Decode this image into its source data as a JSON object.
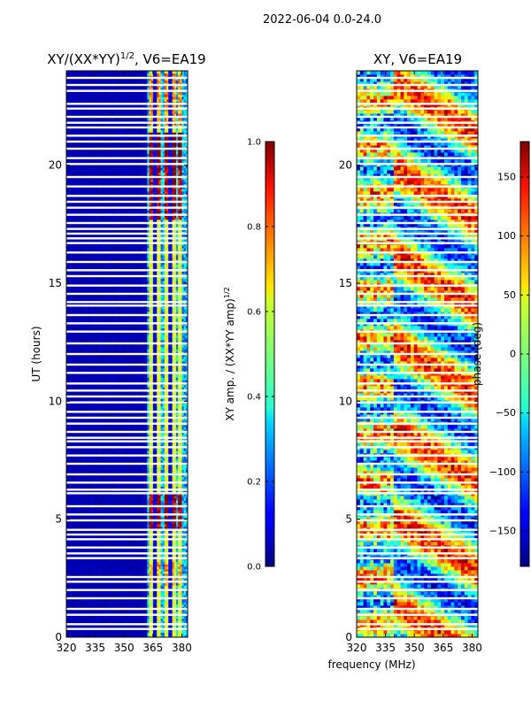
{
  "figure": {
    "suptitle": "2022-06-04 0.0-24.0",
    "shared_xlabel": "frequency (MHz)"
  },
  "chart_data": [
    {
      "type": "heatmap",
      "title": "XY/(XX*YY)",
      "title_exponent": "1/2",
      "title_suffix": ", V6=EA19",
      "xlabel": "",
      "ylabel": "UT (hours)",
      "xlim": [
        320,
        383
      ],
      "ylim": [
        0,
        24
      ],
      "xticks": [
        320,
        335,
        350,
        365,
        380
      ],
      "yticks": [
        0,
        5,
        10,
        15,
        20
      ],
      "colormap": "jet",
      "colorbar": {
        "label": "XY amp. / (XX*YY amp)",
        "label_exponent": "1/2",
        "range": [
          0.0,
          1.0
        ],
        "ticks": [
          "0.0",
          "0.2",
          "0.4",
          "0.6",
          "0.8",
          "1.0"
        ]
      },
      "flagged_ut_hours": [
        0.35,
        0.55,
        0.95,
        1.2,
        1.65,
        2.0,
        2.35,
        2.55,
        3.35,
        3.55,
        3.8,
        4.15,
        4.35,
        4.55,
        4.95,
        5.2,
        5.55,
        6.1,
        6.25,
        6.55,
        6.9,
        7.35,
        7.7,
        8.05,
        8.3,
        8.45,
        8.7,
        9.05,
        9.3,
        9.55,
        9.95,
        10.2,
        10.45,
        10.75,
        11.2,
        11.55,
        12.0,
        12.45,
        12.95,
        13.3,
        13.65,
        14.05,
        14.2,
        14.55,
        14.9,
        15.3,
        15.55,
        15.9,
        16.3,
        16.7,
        16.9,
        17.1,
        17.3,
        17.55,
        17.9,
        18.2,
        18.45,
        18.7,
        19.1,
        19.5,
        20.05,
        20.3,
        20.7,
        21.0,
        21.25,
        21.6,
        21.8,
        22.05,
        22.4,
        22.6,
        23.15,
        23.4,
        23.7
      ],
      "bright_columns_mhz": [
        364,
        368,
        372,
        376,
        379
      ],
      "high_amplitude_bands_ut": [
        [
          2.2,
          3.2,
          0.45
        ],
        [
          4.6,
          6.1,
          0.85
        ],
        [
          17.7,
          19.8,
          0.8
        ],
        [
          19.8,
          21.4,
          0.97
        ],
        [
          21.7,
          23.9,
          0.5
        ]
      ]
    },
    {
      "type": "heatmap",
      "title": "XY, V6=EA19",
      "xlabel": "frequency (MHz)",
      "ylabel": "",
      "xlim": [
        320,
        383
      ],
      "ylim": [
        0,
        24
      ],
      "xticks": [
        320,
        335,
        350,
        365,
        380
      ],
      "yticks": [
        0,
        5,
        10,
        15,
        20
      ],
      "colormap": "jet",
      "colorbar": {
        "label": "phase (deg)",
        "range": [
          -180,
          180
        ],
        "ticks": [
          "−150",
          "−100",
          "−50",
          "0",
          "50",
          "100",
          "150"
        ],
        "tick_values": [
          -150,
          -100,
          -50,
          0,
          50,
          100,
          150
        ]
      },
      "flagged_ut_hours": [
        0.35,
        0.55,
        0.95,
        1.2,
        1.65,
        2.0,
        2.35,
        2.55,
        3.35,
        3.55,
        3.8,
        4.15,
        4.35,
        4.55,
        4.95,
        5.2,
        5.55,
        6.1,
        6.25,
        6.55,
        6.9,
        7.35,
        7.7,
        8.05,
        8.3,
        8.45,
        8.7,
        9.05,
        9.3,
        9.55,
        9.95,
        10.2,
        10.45,
        10.75,
        11.2,
        11.55,
        12.0,
        12.45,
        12.95,
        13.3,
        13.65,
        14.05,
        14.2,
        14.55,
        14.9,
        15.3,
        15.55,
        15.9,
        16.3,
        16.7,
        16.9,
        17.1,
        17.3,
        17.55,
        17.9,
        18.2,
        18.45,
        18.7,
        19.1,
        19.5,
        20.05,
        20.3,
        20.7,
        21.0,
        21.25,
        21.6,
        21.8,
        22.05,
        22.4,
        22.6,
        23.15,
        23.4,
        23.7
      ]
    }
  ]
}
